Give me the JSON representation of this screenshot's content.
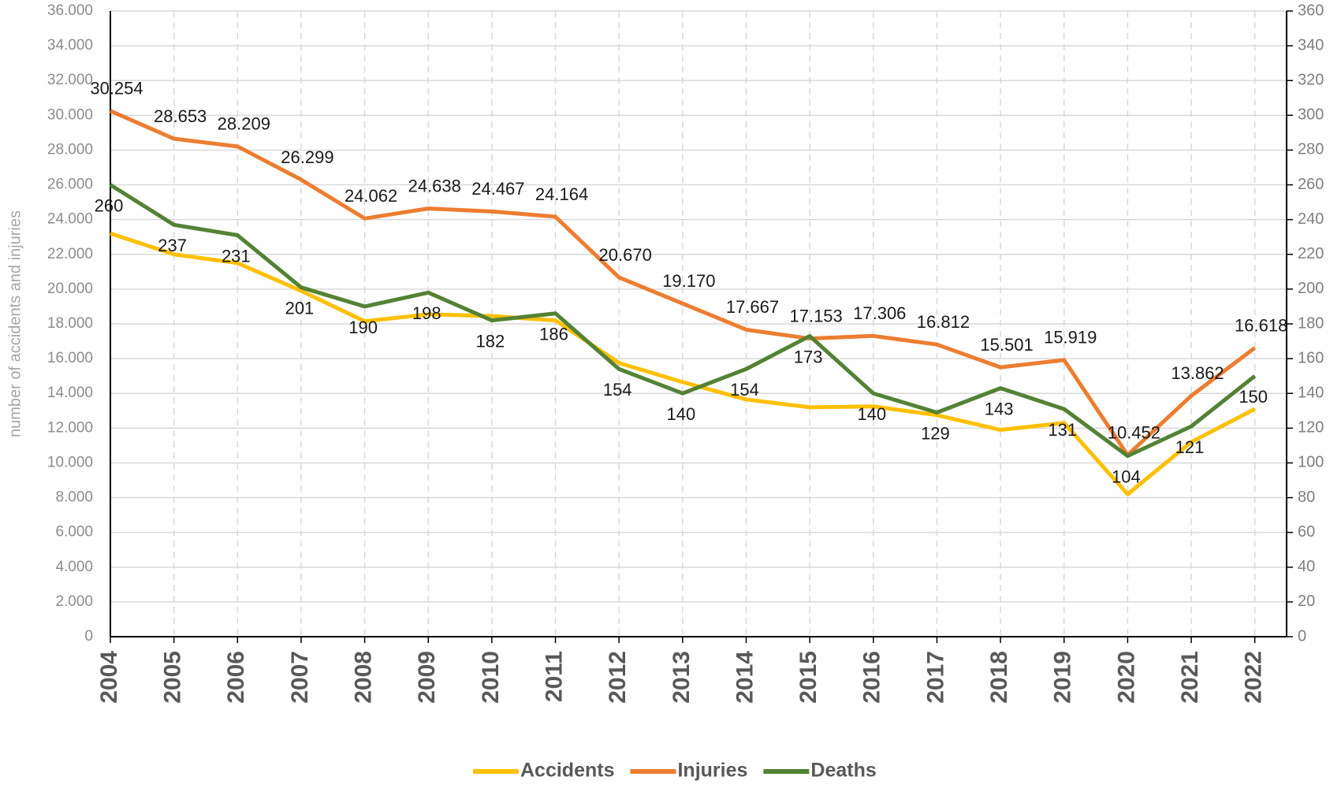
{
  "chart_data": {
    "type": "line",
    "ylabel": "number of accidents and injuries",
    "categories": [
      "2004",
      "2005",
      "2006",
      "2007",
      "2008",
      "2009",
      "2010",
      "2011",
      "2012",
      "2013",
      "2014",
      "2015",
      "2016",
      "2017",
      "2018",
      "2019",
      "2020",
      "2021",
      "2022"
    ],
    "series": [
      {
        "name": "Accidents",
        "color": "#FFC000",
        "values": [
          23200,
          22000,
          21500,
          19900,
          18150,
          18550,
          18450,
          18200,
          15750,
          14650,
          13650,
          13200,
          13250,
          12750,
          11900,
          12300,
          8200,
          11200,
          13100
        ]
      },
      {
        "name": "Injuries",
        "color": "#ED7D31",
        "values": [
          30254,
          28653,
          28209,
          26299,
          24062,
          24638,
          24467,
          24164,
          20670,
          19170,
          17667,
          17153,
          17306,
          16812,
          15501,
          15919,
          10452,
          13862,
          16618
        ],
        "value_labels": [
          "30.254",
          "28.653",
          "28.209",
          "26.299",
          "24.062",
          "24.638",
          "24.467",
          "24.164",
          "20.670",
          "19.170",
          "17.667",
          "17.153",
          "17.306",
          "16.812",
          "15.501",
          "15.919",
          "10.452",
          "13.862",
          "16.618"
        ]
      },
      {
        "name": "Deaths",
        "color": "#548235",
        "axis": "y2",
        "values": [
          260,
          237,
          231,
          201,
          190,
          198,
          182,
          186,
          154,
          140,
          154,
          173,
          140,
          129,
          143,
          131,
          104,
          121,
          150
        ]
      }
    ],
    "ylim": [
      0,
      36000
    ],
    "yticks": [
      0,
      {
        "value": 2000,
        "label": "2.000"
      },
      {
        "value": 4000,
        "label": "4.000"
      },
      {
        "value": 6000,
        "label": "6.000"
      },
      {
        "value": 8000,
        "label": "8.000"
      },
      {
        "value": 10000,
        "label": "10.000"
      },
      {
        "value": 12000,
        "label": "12.000"
      },
      {
        "value": 14000,
        "label": "14.000"
      },
      {
        "value": 16000,
        "label": "16.000"
      },
      {
        "value": 18000,
        "label": "18.000"
      },
      {
        "value": 20000,
        "label": "20.000"
      },
      {
        "value": 22000,
        "label": "22.000"
      },
      {
        "value": 24000,
        "label": "24.000"
      },
      {
        "value": 26000,
        "label": "26.000"
      },
      {
        "value": 28000,
        "label": "28.000"
      },
      {
        "value": 30000,
        "label": "30.000"
      },
      {
        "value": 32000,
        "label": "32.000"
      },
      {
        "value": 34000,
        "label": "34.000"
      },
      {
        "value": 36000,
        "label": "36.000"
      }
    ],
    "y2lim": [
      0,
      360
    ],
    "y2ticks": [
      0,
      20,
      40,
      60,
      80,
      100,
      120,
      140,
      160,
      180,
      200,
      220,
      240,
      260,
      280,
      300,
      320,
      340,
      360
    ],
    "grid": true
  }
}
